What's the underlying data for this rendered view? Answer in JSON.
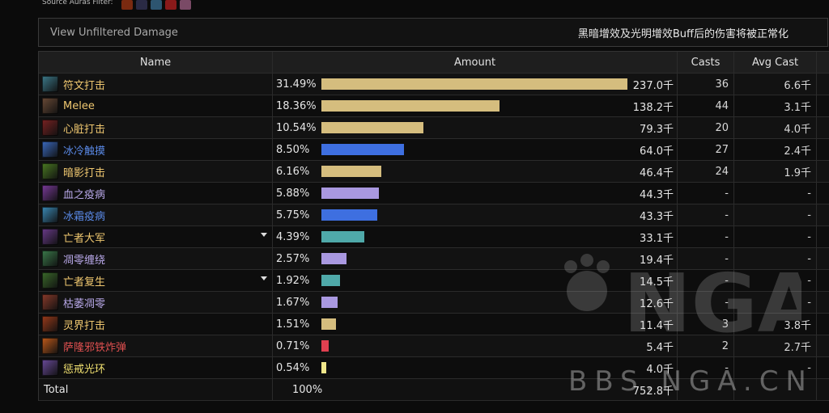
{
  "filter": {
    "label": "Source Auras Filter:",
    "auras": [
      {
        "icon": "fire-aura-icon",
        "color": "#7a2a10"
      },
      {
        "icon": "shadow-aura-icon",
        "color": "#2a2a44"
      },
      {
        "icon": "frost-aura-icon",
        "color": "#2d5570"
      },
      {
        "icon": "blood-aura-icon",
        "color": "#8a1a1a"
      },
      {
        "icon": "pink-aura-icon",
        "color": "#7a4a66"
      }
    ]
  },
  "notice": {
    "link": "View Unfiltered Damage",
    "message": "黑暗增效及光明增效Buff后的伤害将被正常化"
  },
  "columns": {
    "name": "Name",
    "amount": "Amount",
    "casts": "Casts",
    "avg_cast": "Avg Cast"
  },
  "rows": [
    {
      "name": "符文打击",
      "name_color": "#f0c870",
      "icon": "rune-strike-icon",
      "icon_color": "#3c7a8a",
      "pct": "31.49%",
      "fill": 0.9942,
      "bar_color": "#d5bd7e",
      "amount": "237.0千",
      "casts": "36",
      "avg": "6.6千",
      "dropdown": false
    },
    {
      "name": "Melee",
      "name_color": "#f0c870",
      "icon": "melee-icon",
      "icon_color": "#6a4a36",
      "pct": "18.36%",
      "fill": 0.5797,
      "bar_color": "#d5bd7e",
      "amount": "138.2千",
      "casts": "44",
      "avg": "3.1千",
      "dropdown": false
    },
    {
      "name": "心脏打击",
      "name_color": "#f0c870",
      "icon": "heart-strike-icon",
      "icon_color": "#7a2222",
      "pct": "10.54%",
      "fill": 0.3328,
      "bar_color": "#d5bd7e",
      "amount": "79.3千",
      "casts": "20",
      "avg": "4.0千",
      "dropdown": false
    },
    {
      "name": "冰冷触摸",
      "name_color": "#5a8ae8",
      "icon": "icy-touch-icon",
      "icon_color": "#3a6ac0",
      "pct": "8.50%",
      "fill": 0.2684,
      "bar_color": "#3e6fe0",
      "amount": "64.0千",
      "casts": "27",
      "avg": "2.4千",
      "dropdown": false
    },
    {
      "name": "暗影打击",
      "name_color": "#f0c870",
      "icon": "shadow-strike-icon",
      "icon_color": "#4a7a22",
      "pct": "6.16%",
      "fill": 0.1945,
      "bar_color": "#d5bd7e",
      "amount": "46.4千",
      "casts": "24",
      "avg": "1.9千",
      "dropdown": false
    },
    {
      "name": "血之疫病",
      "name_color": "#b8a8e8",
      "icon": "blood-plague-icon",
      "icon_color": "#7a3a9a",
      "pct": "5.88%",
      "fill": 0.1857,
      "bar_color": "#a998e0",
      "amount": "44.3千",
      "casts": "-",
      "avg": "-",
      "dropdown": false
    },
    {
      "name": "冰霜疫病",
      "name_color": "#5a8ae8",
      "icon": "frost-fever-icon",
      "icon_color": "#3a8ab8",
      "pct": "5.75%",
      "fill": 0.1815,
      "bar_color": "#3e6fe0",
      "amount": "43.3千",
      "casts": "-",
      "avg": "-",
      "dropdown": false
    },
    {
      "name": "亡者大军",
      "name_color": "#f0c870",
      "icon": "army-of-dead-icon",
      "icon_color": "#6a3a8a",
      "pct": "4.39%",
      "fill": 0.1386,
      "bar_color": "#4fa9a9",
      "amount": "33.1千",
      "casts": "-",
      "avg": "-",
      "dropdown": true
    },
    {
      "name": "凋零缠绕",
      "name_color": "#b8a8e8",
      "icon": "death-coil-icon",
      "icon_color": "#3a7a4a",
      "pct": "2.57%",
      "fill": 0.0811,
      "bar_color": "#a998e0",
      "amount": "19.4千",
      "casts": "-",
      "avg": "-",
      "dropdown": false
    },
    {
      "name": "亡者复生",
      "name_color": "#f0c870",
      "icon": "raise-dead-icon",
      "icon_color": "#3a6a2a",
      "pct": "1.92%",
      "fill": 0.0606,
      "bar_color": "#4fa9a9",
      "amount": "14.5千",
      "casts": "-",
      "avg": "-",
      "dropdown": true
    },
    {
      "name": "枯萎凋零",
      "name_color": "#b8a8e8",
      "icon": "death-and-decay-icon",
      "icon_color": "#8a3a2a",
      "pct": "1.67%",
      "fill": 0.0527,
      "bar_color": "#a998e0",
      "amount": "12.6千",
      "casts": "-",
      "avg": "-",
      "dropdown": false
    },
    {
      "name": "灵界打击",
      "name_color": "#f0c870",
      "icon": "death-strike-icon",
      "icon_color": "#9a3a1a",
      "pct": "1.51%",
      "fill": 0.0477,
      "bar_color": "#d5bd7e",
      "amount": "11.4千",
      "casts": "3",
      "avg": "3.8千",
      "dropdown": false
    },
    {
      "name": "萨隆邪铁炸弹",
      "name_color": "#e05050",
      "icon": "saronite-bomb-icon",
      "icon_color": "#c05a1a",
      "pct": "0.71%",
      "fill": 0.0224,
      "bar_color": "#e04050",
      "amount": "5.4千",
      "casts": "2",
      "avg": "2.7千",
      "dropdown": false
    },
    {
      "name": "惩戒光环",
      "name_color": "#f0e070",
      "icon": "retribution-aura-icon",
      "icon_color": "#6a4a9a",
      "pct": "0.54%",
      "fill": 0.0171,
      "bar_color": "#f0e68a",
      "amount": "4.0千",
      "casts": "-",
      "avg": "-",
      "dropdown": false
    }
  ],
  "total": {
    "label": "Total",
    "pct": "100%",
    "amount": "752.8千"
  },
  "watermark": {
    "brand": "NGA",
    "url": "BBS.NGA.CN"
  }
}
